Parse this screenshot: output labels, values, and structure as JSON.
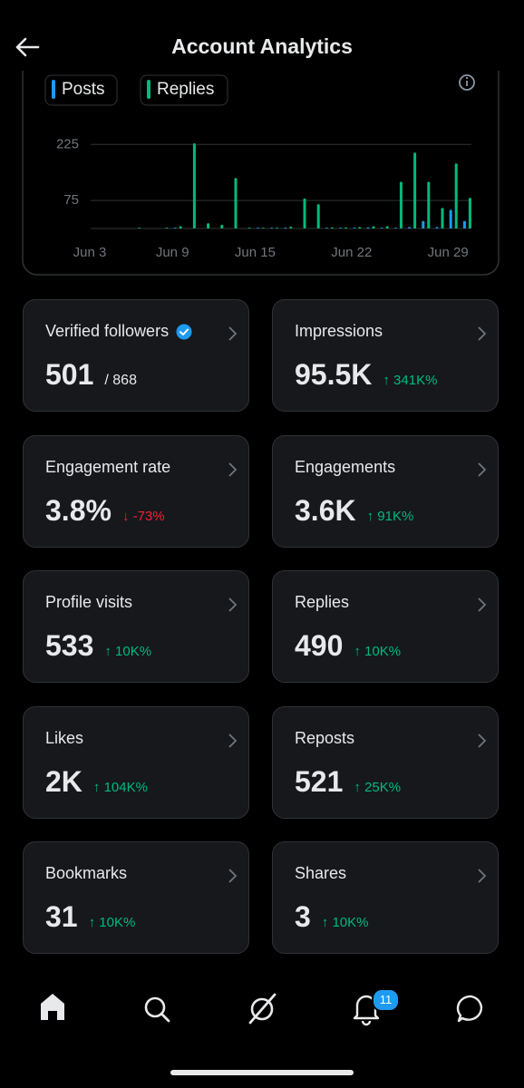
{
  "header": {
    "title": "Account Analytics"
  },
  "chart_data": {
    "type": "bar",
    "categories": [
      "Jun 3",
      null,
      null,
      null,
      null,
      null,
      "Jun 9",
      null,
      null,
      null,
      null,
      null,
      "Jun 15",
      null,
      null,
      null,
      null,
      null,
      null,
      "Jun 22",
      null,
      null,
      null,
      null,
      null,
      null,
      "Jun 29",
      null
    ],
    "series": [
      {
        "name": "Posts",
        "color": "#1d9bf0",
        "values": [
          0,
          0,
          0,
          0,
          0,
          0,
          2,
          0,
          0,
          0,
          0,
          0,
          2,
          2,
          2,
          0,
          0,
          2,
          2,
          2,
          3,
          2,
          2,
          4,
          20,
          4,
          50,
          20
        ]
      },
      {
        "name": "Replies",
        "color": "#00ba7c",
        "values": [
          0,
          0,
          0,
          2,
          0,
          2,
          6,
          228,
          14,
          10,
          135,
          2,
          2,
          2,
          5,
          80,
          65,
          3,
          3,
          4,
          6,
          6,
          125,
          203,
          125,
          55,
          174,
          82
        ]
      }
    ],
    "ylim": [
      0,
      250
    ],
    "yticks": [
      75,
      225
    ],
    "grid": true
  },
  "cards": [
    {
      "label": "Verified followers",
      "value": "501",
      "suffix": "/ 868",
      "verified": true
    },
    {
      "label": "Impressions",
      "value": "95.5K",
      "change": "↑ 341K%",
      "change_color": "#00ba7c"
    },
    {
      "label": "Engagement rate",
      "value": "3.8%",
      "change": "↓ -73%",
      "change_color": "#f4212e"
    },
    {
      "label": "Engagements",
      "value": "3.6K",
      "change": "↑ 91K%",
      "change_color": "#00ba7c"
    },
    {
      "label": "Profile visits",
      "value": "533",
      "change": "↑ 10K%",
      "change_color": "#00ba7c"
    },
    {
      "label": "Replies",
      "value": "490",
      "change": "↑ 10K%",
      "change_color": "#00ba7c"
    },
    {
      "label": "Likes",
      "value": "2K",
      "change": "↑ 104K%",
      "change_color": "#00ba7c"
    },
    {
      "label": "Reposts",
      "value": "521",
      "change": "↑ 25K%",
      "change_color": "#00ba7c"
    },
    {
      "label": "Bookmarks",
      "value": "31",
      "change": "↑ 10K%",
      "change_color": "#00ba7c"
    },
    {
      "label": "Shares",
      "value": "3",
      "change": "↑ 10K%",
      "change_color": "#00ba7c"
    }
  ],
  "nav": {
    "notification_badge": "11"
  }
}
